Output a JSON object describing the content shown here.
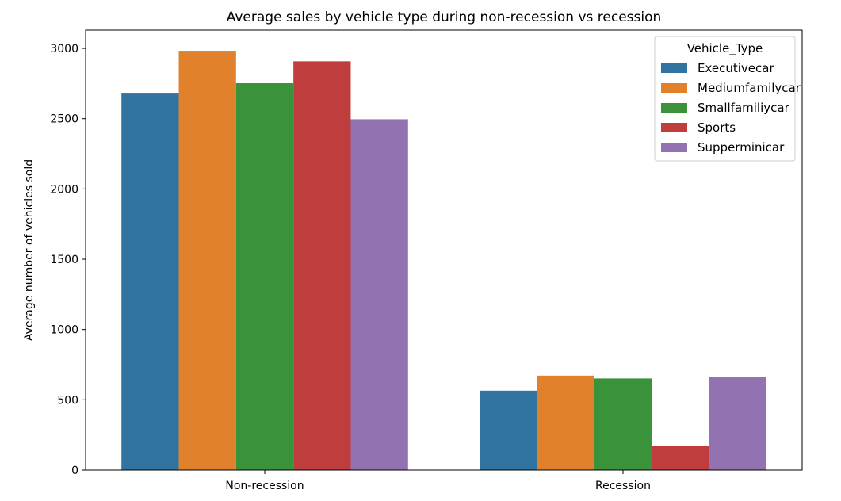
{
  "chart_data": {
    "type": "bar",
    "title": "Average sales by vehicle type during non-recession vs recession",
    "xlabel": "",
    "ylabel": "Average number of vehicles sold",
    "categories": [
      "Non-recession",
      "Recession"
    ],
    "ylim": [
      0,
      3130
    ],
    "yticks": [
      0,
      500,
      1000,
      1500,
      2000,
      2500,
      3000
    ],
    "grid": false,
    "legend": {
      "title": "Vehicle_Type",
      "placement": "top-right"
    },
    "series": [
      {
        "name": "Executivecar",
        "color": "#3274a1",
        "values": [
          2684,
          565
        ]
      },
      {
        "name": "Mediumfamilycar",
        "color": "#e1812c",
        "values": [
          2983,
          672
        ]
      },
      {
        "name": "Smallfamiliycar",
        "color": "#3a923a",
        "values": [
          2752,
          652
        ]
      },
      {
        "name": "Sports",
        "color": "#c03d3e",
        "values": [
          2908,
          170
        ]
      },
      {
        "name": "Supperminicar",
        "color": "#9372b2",
        "values": [
          2496,
          660
        ]
      }
    ]
  }
}
